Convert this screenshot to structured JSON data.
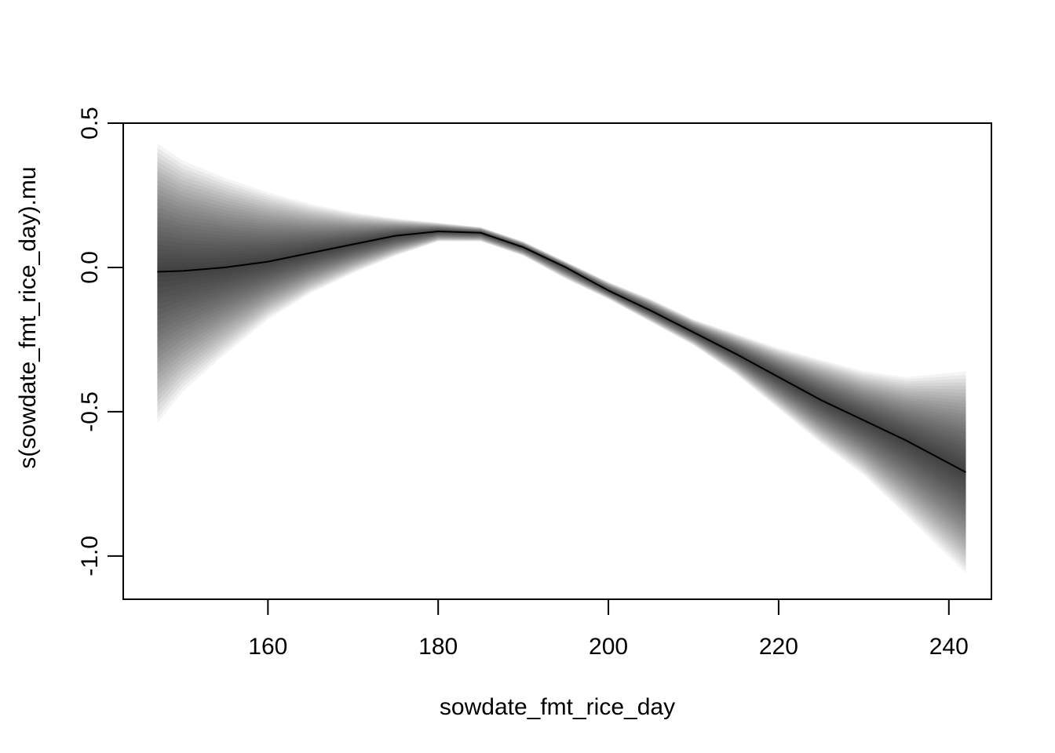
{
  "chart_data": {
    "type": "line",
    "title": "",
    "xlabel": "sowdate_fmt_rice_day",
    "ylabel": "s(sowdate_fmt_rice_day).mu",
    "xlim": [
      143,
      245
    ],
    "ylim": [
      -1.15,
      0.5
    ],
    "x_ticks": [
      160,
      180,
      200,
      220,
      240
    ],
    "x_tick_labels": [
      "160",
      "180",
      "200",
      "220",
      "240"
    ],
    "y_ticks": [
      -1.0,
      -0.5,
      0.0,
      0.5
    ],
    "y_tick_labels": [
      "-1.0",
      "-0.5",
      "0.0",
      "0.5"
    ],
    "grid": false,
    "band_color": "#000000",
    "line_color": "#000000",
    "series": [
      {
        "x": [
          147,
          150,
          155,
          160,
          165,
          170,
          175,
          180,
          185,
          190,
          195,
          200,
          205,
          210,
          215,
          220,
          225,
          230,
          235,
          242
        ],
        "y": [
          -0.015,
          -0.012,
          0.0,
          0.02,
          0.05,
          0.08,
          0.11,
          0.125,
          0.12,
          0.07,
          0.0,
          -0.08,
          -0.15,
          -0.225,
          -0.3,
          -0.38,
          -0.46,
          -0.53,
          -0.6,
          -0.71
        ],
        "lower": [
          -0.54,
          -0.43,
          -0.3,
          -0.18,
          -0.09,
          -0.02,
          0.04,
          0.09,
          0.09,
          0.04,
          -0.04,
          -0.11,
          -0.19,
          -0.27,
          -0.37,
          -0.49,
          -0.61,
          -0.72,
          -0.86,
          -1.06
        ],
        "upper": [
          0.43,
          0.37,
          0.31,
          0.26,
          0.22,
          0.19,
          0.17,
          0.155,
          0.14,
          0.09,
          0.02,
          -0.05,
          -0.11,
          -0.18,
          -0.23,
          -0.28,
          -0.32,
          -0.36,
          -0.38,
          -0.36
        ]
      }
    ]
  }
}
